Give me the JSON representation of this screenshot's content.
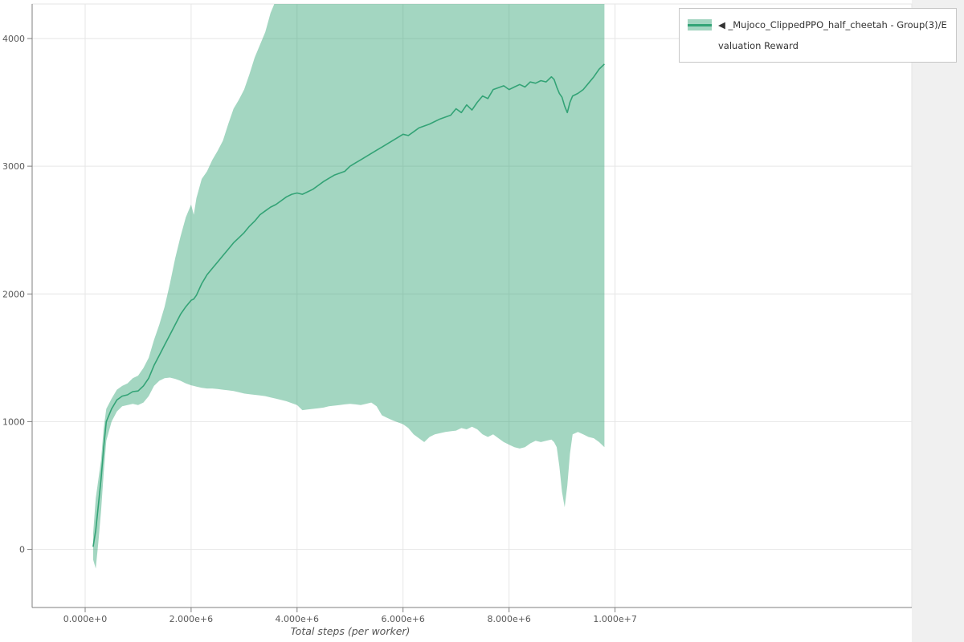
{
  "page": {
    "background": "#ffffff",
    "right_margin_bg": "#f0f0f0"
  },
  "colors": {
    "line": "#33a376",
    "band_fill": "#33a376",
    "band_opacity": 0.45,
    "band_legend": "#a3d5c1",
    "grid": "#e6e6e6",
    "frame": "#e5e5e5",
    "axis": "#7f7f7f",
    "tick_text": "#595959",
    "axis_label_text": "#555555",
    "legend_border": "#c7c7c7"
  },
  "legend": {
    "entries": [
      {
        "label": "◀ _Mujoco_ClippedPPO_half_cheetah - Group(3)/Evaluation Reward",
        "line_color": "#33a376",
        "fill_color": "#a3d5c1"
      }
    ]
  },
  "chart_data": {
    "type": "line",
    "title": "",
    "xlabel": "Total steps (per worker)",
    "ylabel": "",
    "grid": true,
    "legend_position": "top-right",
    "x_axis": {
      "lim": [
        -1000000,
        15600000
      ],
      "ticks": [
        0,
        2000000,
        4000000,
        6000000,
        8000000,
        10000000
      ],
      "tick_labels": [
        "0.000e+0",
        "2.000e+6",
        "4.000e+6",
        "6.000e+6",
        "8.000e+6",
        "1.000e+7"
      ]
    },
    "y_axis": {
      "lim": [
        -455,
        4270
      ],
      "ticks": [
        0,
        1000,
        2000,
        3000,
        4000
      ],
      "tick_labels": [
        "0",
        "1000",
        "2000",
        "3000",
        "4000"
      ]
    },
    "series": [
      {
        "name": "_Mujoco_ClippedPPO_half_cheetah - Group(3)/Evaluation Reward",
        "x": [
          150000,
          200000,
          250000,
          300000,
          350000,
          400000,
          500000,
          600000,
          700000,
          800000,
          900000,
          1000000,
          1100000,
          1200000,
          1300000,
          1400000,
          1500000,
          1600000,
          1700000,
          1800000,
          1900000,
          2000000,
          2050000,
          2100000,
          2200000,
          2300000,
          2400000,
          2500000,
          2600000,
          2700000,
          2800000,
          2900000,
          3000000,
          3100000,
          3200000,
          3300000,
          3400000,
          3500000,
          3600000,
          3700000,
          3800000,
          3900000,
          4000000,
          4100000,
          4200000,
          4300000,
          4400000,
          4500000,
          4600000,
          4700000,
          4800000,
          4900000,
          5000000,
          5100000,
          5200000,
          5300000,
          5400000,
          5500000,
          5600000,
          5700000,
          5800000,
          5900000,
          6000000,
          6100000,
          6200000,
          6300000,
          6400000,
          6500000,
          6600000,
          6700000,
          6800000,
          6900000,
          7000000,
          7100000,
          7200000,
          7300000,
          7400000,
          7500000,
          7600000,
          7700000,
          7800000,
          7900000,
          8000000,
          8100000,
          8200000,
          8300000,
          8400000,
          8500000,
          8600000,
          8700000,
          8800000,
          8850000,
          8900000,
          8950000,
          9000000,
          9050000,
          9100000,
          9150000,
          9200000,
          9300000,
          9400000,
          9500000,
          9600000,
          9700000,
          9800000
        ],
        "mean": [
          20,
          150,
          350,
          550,
          800,
          1000,
          1100,
          1170,
          1200,
          1210,
          1235,
          1240,
          1280,
          1340,
          1440,
          1520,
          1600,
          1680,
          1760,
          1840,
          1900,
          1950,
          1960,
          1990,
          2080,
          2150,
          2200,
          2250,
          2300,
          2350,
          2400,
          2440,
          2480,
          2530,
          2570,
          2620,
          2650,
          2680,
          2700,
          2730,
          2760,
          2780,
          2790,
          2780,
          2800,
          2820,
          2850,
          2880,
          2905,
          2930,
          2945,
          2960,
          3000,
          3025,
          3050,
          3075,
          3100,
          3125,
          3150,
          3175,
          3200,
          3225,
          3250,
          3240,
          3270,
          3300,
          3315,
          3330,
          3350,
          3370,
          3385,
          3400,
          3450,
          3420,
          3480,
          3440,
          3500,
          3550,
          3530,
          3600,
          3615,
          3630,
          3600,
          3620,
          3640,
          3620,
          3660,
          3650,
          3670,
          3660,
          3700,
          3680,
          3620,
          3570,
          3540,
          3470,
          3420,
          3500,
          3550,
          3570,
          3600,
          3650,
          3700,
          3760,
          3800
        ],
        "lower": [
          -80,
          -150,
          60,
          300,
          600,
          850,
          1000,
          1080,
          1120,
          1130,
          1140,
          1130,
          1150,
          1200,
          1280,
          1320,
          1340,
          1345,
          1335,
          1320,
          1300,
          1285,
          1280,
          1275,
          1265,
          1260,
          1260,
          1255,
          1250,
          1245,
          1240,
          1230,
          1220,
          1215,
          1210,
          1205,
          1200,
          1190,
          1180,
          1170,
          1160,
          1145,
          1130,
          1090,
          1095,
          1100,
          1105,
          1110,
          1120,
          1125,
          1130,
          1135,
          1140,
          1135,
          1130,
          1140,
          1150,
          1120,
          1050,
          1030,
          1010,
          995,
          980,
          950,
          900,
          870,
          840,
          880,
          900,
          910,
          920,
          925,
          930,
          950,
          940,
          960,
          940,
          900,
          880,
          900,
          870,
          840,
          820,
          800,
          790,
          800,
          830,
          850,
          840,
          850,
          860,
          840,
          800,
          650,
          450,
          330,
          500,
          750,
          900,
          920,
          900,
          880,
          870,
          840,
          800
        ],
        "upper": [
          120,
          400,
          550,
          700,
          950,
          1100,
          1180,
          1250,
          1280,
          1300,
          1340,
          1360,
          1420,
          1500,
          1640,
          1760,
          1900,
          2080,
          2280,
          2450,
          2600,
          2700,
          2620,
          2750,
          2900,
          2960,
          3050,
          3120,
          3200,
          3330,
          3450,
          3520,
          3600,
          3720,
          3850,
          3950,
          4050,
          4200,
          4300,
          4400,
          4500,
          4500,
          4500,
          4500,
          4500,
          4500,
          4500,
          4500,
          4500,
          4500,
          4500,
          4500,
          4500,
          4500,
          4500,
          4500,
          4500,
          4500,
          4500,
          4500,
          4500,
          4500,
          4500,
          4500,
          4500,
          4500,
          4500,
          4500,
          4500,
          4500,
          4500,
          4500,
          4500,
          4500,
          4500,
          4500,
          4500,
          4500,
          4500,
          4500,
          4500,
          4500,
          4500,
          4500,
          4500,
          4500,
          4500,
          4500,
          4500,
          4500,
          4500,
          4500,
          4500,
          4500,
          4500,
          4500,
          4500,
          4500,
          4500,
          4500,
          4500,
          4500,
          4500,
          4500,
          4500
        ]
      }
    ]
  }
}
